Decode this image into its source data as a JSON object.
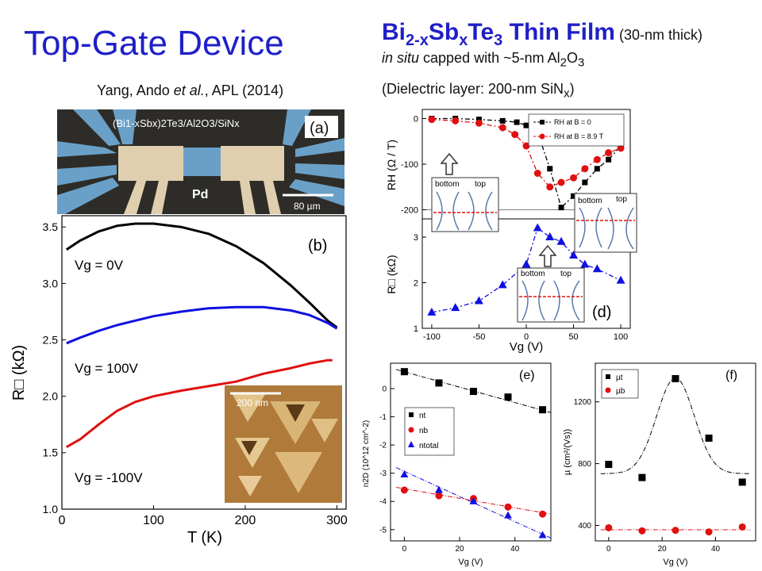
{
  "slide": {
    "title": "Top-Gate Device",
    "citation_authors": "Yang, Ando ",
    "citation_etal": "et al.",
    "citation_journal": ", APL (2014)",
    "film_title_html": "Bi<sub style=\"font-size:20px\">2-x</sub>Sb<sub style=\"font-size:20px\">x</sub>Te<sub style=\"font-size:20px\">3</sub> Thin Film",
    "film_thickness": " (30-nm thick)",
    "capped_html": "<i>in situ</i> capped with ~5-nm Al<sub>2</sub>O<sub>3</sub>",
    "dielectric_html": "(Dielectric layer: 200-nm SiN<sub>x</sub>)"
  },
  "panel_a": {
    "label": "(a)",
    "stack_label": "(Bi1-xSbx)2Te3/Al2O3/SiNx",
    "electrode_label": "Pd",
    "scale_label": "80 µm",
    "colors": {
      "background": "#2e2c28",
      "film": "#6aa0c8",
      "electrode": "#e0cfae"
    }
  },
  "panel_b": {
    "label": "(b)",
    "inset_scale": "200 nm",
    "ylabel": "R□ (kΩ)",
    "xlabel": "T (K)",
    "annotations": [
      "Vg = 0V",
      "Vg = 100V",
      "Vg = -100V"
    ]
  },
  "panel_d": {
    "label": "(d)",
    "ylabel_top": "RH (Ω / T)",
    "ylabel_bottom": "R□ (kΩ)",
    "xlabel": "Vg (V)",
    "legend": [
      "RH at B = 0",
      "RH at B = 8.9 T"
    ],
    "inset_bottom": "bottom",
    "inset_top": "top"
  },
  "panel_e": {
    "label": "(e)",
    "ylabel": "n2D (10^12 cm^-2)",
    "xlabel": "Vg (V)",
    "legend": [
      "nt",
      "nb",
      "ntotal"
    ]
  },
  "panel_f": {
    "label": "(f)",
    "ylabel": "µ (cm²/(Vs))",
    "xlabel": "Vg (V)",
    "legend": [
      "µt",
      "µb"
    ]
  },
  "chart_data": [
    {
      "id": "b",
      "type": "line",
      "xlabel": "T (K)",
      "ylabel": "R□ (kΩ)",
      "xlim": [
        0,
        310
      ],
      "ylim": [
        1.0,
        3.6
      ],
      "xticks": [
        0,
        100,
        200,
        300
      ],
      "yticks": [
        1.0,
        1.5,
        2.0,
        2.5,
        3.0,
        3.5
      ],
      "series": [
        {
          "name": "Vg = 0V",
          "color": "#000000",
          "x": [
            5,
            20,
            40,
            60,
            80,
            100,
            130,
            160,
            190,
            220,
            250,
            270,
            290,
            300
          ],
          "y": [
            3.3,
            3.38,
            3.46,
            3.51,
            3.53,
            3.53,
            3.5,
            3.44,
            3.33,
            3.18,
            2.98,
            2.83,
            2.67,
            2.61
          ]
        },
        {
          "name": "Vg = 100V",
          "color": "#1010e0",
          "x": [
            5,
            20,
            40,
            60,
            80,
            100,
            130,
            160,
            190,
            220,
            250,
            270,
            290,
            300
          ],
          "y": [
            2.47,
            2.52,
            2.58,
            2.63,
            2.67,
            2.71,
            2.75,
            2.78,
            2.79,
            2.79,
            2.76,
            2.72,
            2.65,
            2.6
          ]
        },
        {
          "name": "Vg = -100V",
          "color": "#e01010",
          "x": [
            5,
            20,
            40,
            60,
            80,
            100,
            130,
            160,
            190,
            220,
            250,
            270,
            290,
            295
          ],
          "y": [
            1.55,
            1.62,
            1.75,
            1.87,
            1.95,
            2.0,
            2.05,
            2.09,
            2.13,
            2.2,
            2.25,
            2.29,
            2.32,
            2.32
          ]
        }
      ]
    },
    {
      "id": "d_top",
      "type": "line",
      "xlabel": "Vg (V)",
      "ylabel": "RH (Ω / T)",
      "xlim": [
        -110,
        110
      ],
      "ylim": [
        -220,
        20
      ],
      "xticks": [
        -100,
        -50,
        0,
        50,
        100
      ],
      "yticks": [
        0,
        -100,
        -200
      ],
      "series": [
        {
          "name": "RH at B = 0",
          "color": "#000000",
          "x": [
            -100,
            -75,
            -50,
            -25,
            -10,
            0,
            12,
            25,
            37,
            50,
            62,
            75,
            87,
            100
          ],
          "y": [
            0,
            0,
            -2,
            -5,
            -8,
            -15,
            -30,
            -110,
            -195,
            -170,
            -140,
            -110,
            -90,
            -60
          ]
        },
        {
          "name": "RH at B = 8.9 T",
          "color": "#e01010",
          "x": [
            -100,
            -75,
            -50,
            -25,
            -12,
            0,
            12,
            25,
            37,
            50,
            62,
            75,
            87,
            100
          ],
          "y": [
            -2,
            -5,
            -10,
            -20,
            -35,
            -60,
            -120,
            -150,
            -140,
            -130,
            -110,
            -90,
            -75,
            -65
          ]
        }
      ]
    },
    {
      "id": "d_bottom",
      "type": "line",
      "xlabel": "Vg (V)",
      "ylabel": "R□ (kΩ)",
      "xlim": [
        -110,
        110
      ],
      "ylim": [
        1,
        3.4
      ],
      "xticks": [
        -100,
        -50,
        0,
        50,
        100
      ],
      "yticks": [
        1,
        2,
        3
      ],
      "series": [
        {
          "name": "R□",
          "color": "#1010e0",
          "x": [
            -100,
            -75,
            -50,
            -25,
            0,
            12,
            25,
            37,
            50,
            62,
            75,
            100
          ],
          "y": [
            1.35,
            1.45,
            1.6,
            1.95,
            2.4,
            3.2,
            3.0,
            2.9,
            2.6,
            2.4,
            2.3,
            2.05
          ]
        }
      ]
    },
    {
      "id": "e",
      "type": "scatter",
      "xlabel": "Vg (V)",
      "ylabel": "n2D (10^12 cm^-2)",
      "xlim": [
        -5,
        53
      ],
      "ylim": [
        -5.4,
        0.9
      ],
      "xticks": [
        0,
        20,
        40
      ],
      "yticks": [
        0,
        -1,
        -2,
        -3,
        -4,
        -5
      ],
      "series": [
        {
          "name": "nt",
          "color": "#000000",
          "marker": "square",
          "x": [
            0,
            12.5,
            25,
            37.5,
            50
          ],
          "y": [
            0.6,
            0.2,
            -0.1,
            -0.3,
            -0.75
          ],
          "fit": [
            [
              -3,
              0.68
            ],
            [
              53,
              -0.85
            ]
          ]
        },
        {
          "name": "nb",
          "color": "#e01010",
          "marker": "circle",
          "x": [
            0,
            12.5,
            25,
            37.5,
            50
          ],
          "y": [
            -3.6,
            -3.8,
            -3.9,
            -4.2,
            -4.45
          ],
          "fit": [
            [
              -3,
              -3.5
            ],
            [
              53,
              -4.45
            ]
          ]
        },
        {
          "name": "ntotal",
          "color": "#1010e0",
          "marker": "triangle",
          "x": [
            0,
            12.5,
            25,
            37.5,
            50
          ],
          "y": [
            -3.05,
            -3.6,
            -4.0,
            -4.5,
            -5.2
          ],
          "fit": [
            [
              -3,
              -2.8
            ],
            [
              53,
              -5.3
            ]
          ]
        }
      ]
    },
    {
      "id": "f",
      "type": "scatter",
      "xlabel": "Vg (V)",
      "ylabel": "µ (cm²/(Vs))",
      "xlim": [
        -5,
        55
      ],
      "ylim": [
        300,
        1450
      ],
      "xticks": [
        0,
        20,
        40
      ],
      "yticks": [
        400,
        800,
        1200
      ],
      "series": [
        {
          "name": "µt",
          "color": "#000000",
          "marker": "square",
          "x": [
            0,
            12.5,
            25,
            37.5,
            50
          ],
          "y": [
            795,
            710,
            1350,
            965,
            680
          ],
          "fit_gaussian": {
            "base": 735,
            "amp": 620,
            "center": 25,
            "width": 7
          }
        },
        {
          "name": "µb",
          "color": "#e01010",
          "marker": "circle",
          "x": [
            0,
            12.5,
            25,
            37.5,
            50
          ],
          "y": [
            385,
            365,
            368,
            358,
            390
          ],
          "fit": [
            [
              -3,
              372
            ],
            [
              53,
              372
            ]
          ]
        }
      ]
    }
  ]
}
